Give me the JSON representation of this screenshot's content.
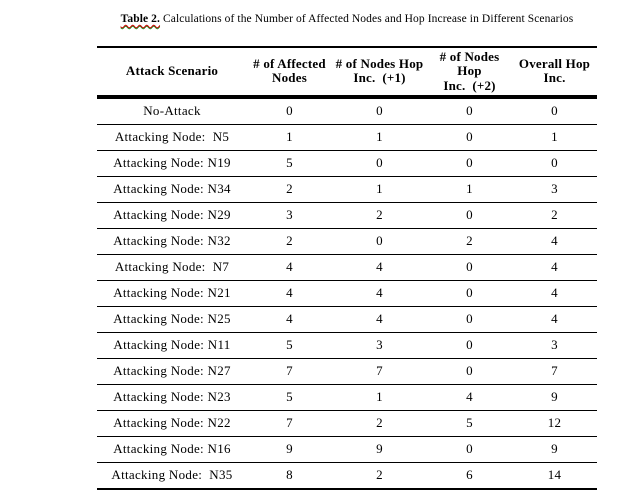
{
  "caption": {
    "label": "Table 2.",
    "text": " Calculations of the Number of Affected Nodes and Hop Increase in Different Scenarios"
  },
  "table": {
    "headers": [
      "Attack Scenario",
      "# of Affected\nNodes",
      "# of Nodes Hop\nInc.  (+1)",
      "# of Nodes\nHop\nInc.  (+2)",
      "Overall Hop\nInc."
    ],
    "rows": [
      [
        "No-Attack",
        "0",
        "0",
        "0",
        "0"
      ],
      [
        "Attacking Node:  N5",
        "1",
        "1",
        "0",
        "1"
      ],
      [
        "Attacking Node: N19",
        "5",
        "0",
        "0",
        "0"
      ],
      [
        "Attacking Node: N34",
        "2",
        "1",
        "1",
        "3"
      ],
      [
        "Attacking Node: N29",
        "3",
        "2",
        "0",
        "2"
      ],
      [
        "Attacking Node: N32",
        "2",
        "0",
        "2",
        "4"
      ],
      [
        "Attacking Node:  N7",
        "4",
        "4",
        "0",
        "4"
      ],
      [
        "Attacking Node: N21",
        "4",
        "4",
        "0",
        "4"
      ],
      [
        "Attacking Node: N25",
        "4",
        "4",
        "0",
        "4"
      ],
      [
        "Attacking Node: N11",
        "5",
        "3",
        "0",
        "3"
      ],
      [
        "Attacking Node: N27",
        "7",
        "7",
        "0",
        "7"
      ],
      [
        "Attacking Node: N23",
        "5",
        "1",
        "4",
        "9"
      ],
      [
        "Attacking Node: N22",
        "7",
        "2",
        "5",
        "12"
      ],
      [
        "Attacking Node: N16",
        "9",
        "9",
        "0",
        "9"
      ],
      [
        "Attacking Node:  N35",
        "8",
        "2",
        "6",
        "14"
      ]
    ]
  },
  "colors": {
    "text": "#000000",
    "background": "#ffffff",
    "rule": "#000000",
    "spellcheck_underline_red": "#cc0000",
    "grammar_underline_green": "#1a8a1a"
  }
}
